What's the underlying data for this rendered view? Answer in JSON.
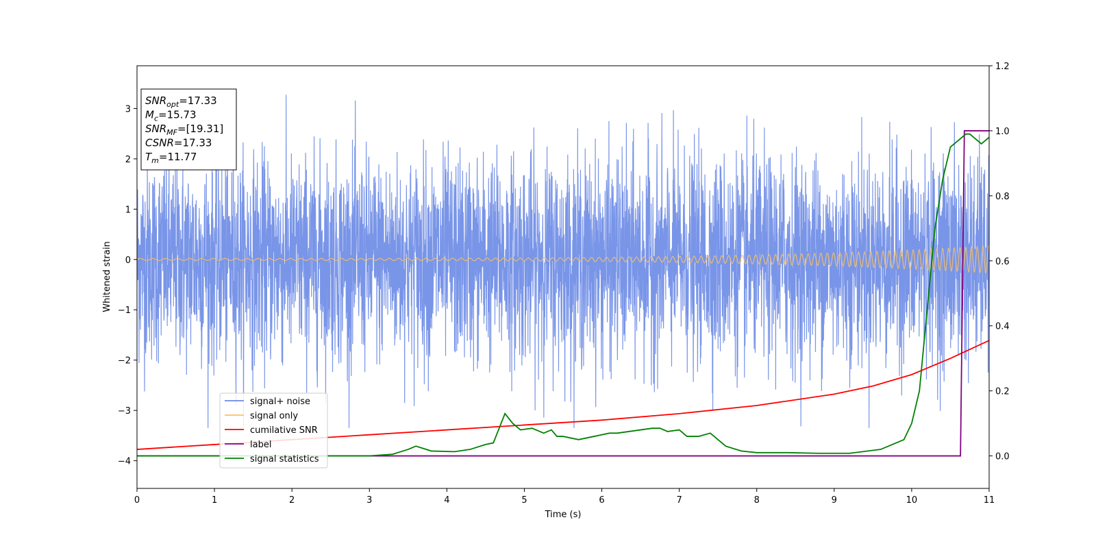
{
  "chart_data": {
    "type": "line",
    "xlabel": "Time (s)",
    "ylabel": "Whitened strain",
    "xlim": [
      0,
      11
    ],
    "ylim": [
      -4.55,
      3.85
    ],
    "y2lim": [
      -0.1,
      1.2
    ],
    "xticks": [
      "0",
      "1",
      "2",
      "3",
      "4",
      "5",
      "6",
      "7",
      "8",
      "9",
      "10",
      "11"
    ],
    "yticks": [
      "-4",
      "-3",
      "-2",
      "-1",
      "0",
      "1",
      "2",
      "3"
    ],
    "y2ticks": [
      "0.0",
      "0.2",
      "0.4",
      "0.6",
      "0.8",
      "1.0",
      "1.2"
    ],
    "grid": false,
    "legend_position": "lower-left",
    "colors": {
      "noise": "#6a89e6",
      "signal": "#f5c06a",
      "snr": "#ff0000",
      "label": "#800080",
      "stat": "#008000"
    },
    "legend": [
      {
        "name": "signal+ noise",
        "color": "#6a89e6"
      },
      {
        "name": "signal only",
        "color": "#f5c06a"
      },
      {
        "name": "cumilative SNR",
        "color": "#ff0000"
      },
      {
        "name": "label",
        "color": "#800080"
      },
      {
        "name": "signal statistics",
        "color": "#008000"
      }
    ],
    "annotation": [
      {
        "var": "SNR",
        "sub": "opt",
        "value": "=17.33"
      },
      {
        "var": "M",
        "sub": "c",
        "value": "=15.73"
      },
      {
        "var": "SNR",
        "sub": "MF",
        "value": "=[19.31]"
      },
      {
        "var": "CSNR",
        "sub": "",
        "value": "=17.33"
      },
      {
        "var": "T",
        "sub": "m",
        "value": "=11.77"
      }
    ],
    "series": [
      {
        "name": "signal+ noise",
        "axis": "left",
        "kind": "noise",
        "sigma": 1.0,
        "y_range": [
          -3.35,
          3.4
        ]
      },
      {
        "name": "signal only",
        "axis": "left",
        "kind": "chirp",
        "amplitude_start": 0.02,
        "amplitude_end": 0.27
      },
      {
        "name": "cumilative SNR",
        "axis": "right",
        "x": [
          0,
          1,
          2,
          3,
          4,
          5,
          6,
          7,
          8,
          9,
          9.5,
          10,
          10.5,
          11
        ],
        "y": [
          0.02,
          0.035,
          0.05,
          0.065,
          0.08,
          0.095,
          0.11,
          0.13,
          0.155,
          0.19,
          0.215,
          0.25,
          0.3,
          0.355
        ]
      },
      {
        "name": "label",
        "axis": "right",
        "x": [
          0,
          10.63,
          10.68,
          11
        ],
        "y": [
          0,
          0,
          1,
          1
        ]
      },
      {
        "name": "signal statistics",
        "axis": "right",
        "x": [
          0,
          1,
          2,
          3,
          3.3,
          3.5,
          3.6,
          3.8,
          4.1,
          4.3,
          4.5,
          4.6,
          4.75,
          4.85,
          4.95,
          5.1,
          5.25,
          5.35,
          5.42,
          5.5,
          5.7,
          5.9,
          6.1,
          6.2,
          6.35,
          6.5,
          6.65,
          6.75,
          6.85,
          7.0,
          7.1,
          7.25,
          7.4,
          7.6,
          7.8,
          8.0,
          8.4,
          8.8,
          9.2,
          9.6,
          9.7,
          9.8,
          9.9,
          10.0,
          10.1,
          10.2,
          10.3,
          10.4,
          10.5,
          10.55,
          10.6,
          10.7,
          10.75,
          10.8,
          10.9,
          11
        ],
        "y": [
          0,
          0,
          0,
          0,
          0.005,
          0.02,
          0.03,
          0.015,
          0.013,
          0.02,
          0.035,
          0.04,
          0.13,
          0.1,
          0.08,
          0.085,
          0.07,
          0.08,
          0.06,
          0.06,
          0.05,
          0.06,
          0.07,
          0.07,
          0.075,
          0.08,
          0.085,
          0.085,
          0.075,
          0.08,
          0.06,
          0.06,
          0.07,
          0.03,
          0.015,
          0.01,
          0.01,
          0.008,
          0.008,
          0.02,
          0.03,
          0.04,
          0.05,
          0.1,
          0.2,
          0.45,
          0.7,
          0.85,
          0.95,
          0.96,
          0.97,
          0.99,
          0.99,
          0.98,
          0.96,
          0.98
        ]
      }
    ]
  }
}
